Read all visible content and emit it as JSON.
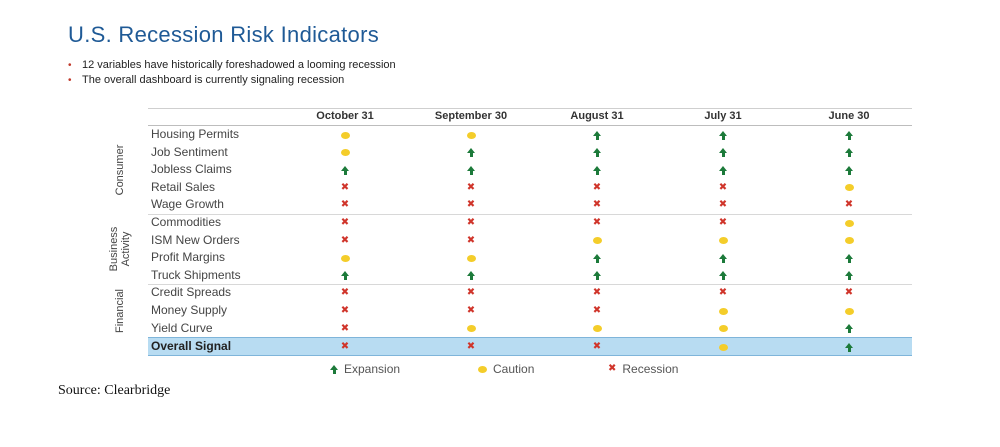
{
  "title": "U.S. Recession Risk Indicators",
  "bullets": [
    "12 variables have historically foreshadowed a looming recession",
    "The overall dashboard is currently signaling recession"
  ],
  "source": "Source: Clearbridge",
  "colors": {
    "title": "#1f5a96",
    "expansion": "#1c7a3a",
    "caution": "#f4cd2a",
    "recession": "#d0352b",
    "overall_band": "#b8dcf2"
  },
  "chart_data": {
    "type": "table",
    "columns": [
      "October 31",
      "September 30",
      "August 31",
      "July 31",
      "June 30"
    ],
    "groups": [
      {
        "name": "Consumer",
        "rows": [
          "Housing Permits",
          "Job Sentiment",
          "Jobless Claims",
          "Retail Sales",
          "Wage Growth"
        ]
      },
      {
        "name": "Business Activity",
        "rows": [
          "Commodities",
          "ISM New Orders",
          "Profit Margins",
          "Truck Shipments"
        ]
      },
      {
        "name": "Financial",
        "rows": [
          "Credit Spreads",
          "Money Supply",
          "Yield Curve"
        ]
      }
    ],
    "rows": [
      {
        "label": "Housing Permits",
        "values": [
          "caution",
          "caution",
          "expansion",
          "expansion",
          "expansion"
        ]
      },
      {
        "label": "Job Sentiment",
        "values": [
          "caution",
          "expansion",
          "expansion",
          "expansion",
          "expansion"
        ]
      },
      {
        "label": "Jobless Claims",
        "values": [
          "expansion",
          "expansion",
          "expansion",
          "expansion",
          "expansion"
        ]
      },
      {
        "label": "Retail Sales",
        "values": [
          "recession",
          "recession",
          "recession",
          "recession",
          "caution"
        ]
      },
      {
        "label": "Wage Growth",
        "values": [
          "recession",
          "recession",
          "recession",
          "recession",
          "recession"
        ]
      },
      {
        "label": "Commodities",
        "values": [
          "recession",
          "recession",
          "recession",
          "recession",
          "caution"
        ]
      },
      {
        "label": "ISM New Orders",
        "values": [
          "recession",
          "recession",
          "caution",
          "caution",
          "caution"
        ]
      },
      {
        "label": "Profit Margins",
        "values": [
          "caution",
          "caution",
          "expansion",
          "expansion",
          "expansion"
        ]
      },
      {
        "label": "Truck Shipments",
        "values": [
          "expansion",
          "expansion",
          "expansion",
          "expansion",
          "expansion"
        ]
      },
      {
        "label": "Credit Spreads",
        "values": [
          "recession",
          "recession",
          "recession",
          "recession",
          "recession"
        ]
      },
      {
        "label": "Money Supply",
        "values": [
          "recession",
          "recession",
          "recession",
          "caution",
          "caution"
        ]
      },
      {
        "label": "Yield Curve",
        "values": [
          "recession",
          "caution",
          "caution",
          "caution",
          "expansion"
        ]
      }
    ],
    "overall": {
      "label": "Overall Signal",
      "values": [
        "recession",
        "recession",
        "recession",
        "caution",
        "expansion"
      ]
    },
    "legend": [
      {
        "key": "expansion",
        "label": "Expansion"
      },
      {
        "key": "caution",
        "label": "Caution"
      },
      {
        "key": "recession",
        "label": "Recession"
      }
    ]
  }
}
